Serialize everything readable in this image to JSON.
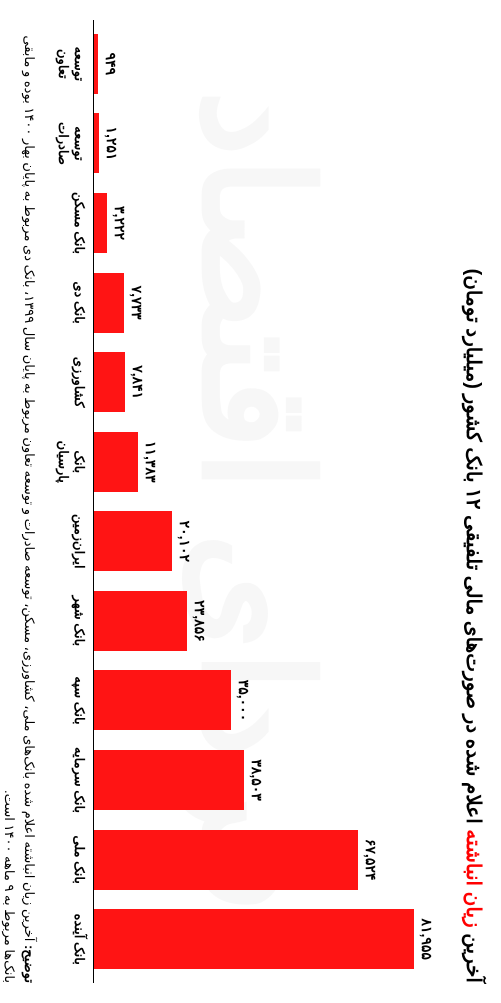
{
  "chart": {
    "type": "bar",
    "title_pre": "آخرین ",
    "title_accent": "زیان انباشته",
    "title_post": " اعلام شده در صورت‌های مالی تلفیقی ۱۲ بانک کشور (میلیارد تومان)",
    "title_fontsize": 20,
    "bar_color": "#ff1414",
    "background_color": "#ffffff",
    "max_value": 81955,
    "bars": [
      {
        "label": "بانک آینده",
        "value": 81955,
        "value_fa": "۸۱,۹۵۵"
      },
      {
        "label": "بانک ملی",
        "value": 67524,
        "value_fa": "۶۷,۵۲۴"
      },
      {
        "label": "بانک سرمایه",
        "value": 38503,
        "value_fa": "۳۸,۵۰۳"
      },
      {
        "label": "بانک سپه",
        "value": 35000,
        "value_fa": "۳۵,۰۰۰"
      },
      {
        "label": "بانک شهر",
        "value": 23856,
        "value_fa": "۲۳,۸۵۶"
      },
      {
        "label": "ایران‌زمین",
        "value": 20102,
        "value_fa": "۲۰,۱۰۲"
      },
      {
        "label": "بانک پارسیان",
        "value": 11383,
        "value_fa": "۱۱,۳۸۳"
      },
      {
        "label": "کشاورزی",
        "value": 7841,
        "value_fa": "۷,۸۴۱"
      },
      {
        "label": "بانک دی",
        "value": 7733,
        "value_fa": "۷,۷۳۳"
      },
      {
        "label": "بانک مسکن",
        "value": 3222,
        "value_fa": "۳,۲۲۲"
      },
      {
        "label": "توسعه صادرات",
        "value": 1251,
        "value_fa": "۱,۲۵۱"
      },
      {
        "label": "توسعه تعاون",
        "value": 949,
        "value_fa": "۹۴۹"
      }
    ],
    "note_bold": "توضیح: ",
    "note_text": "آخرین زیان انباشته اعلام شده بانک‌های ملی، کشاورزی، مسکن، توسعه صادرات و توسعه تعاون مربوط به پایان سال ۱۳۹۹، بانک دی مربوط به پایان بهار ۱۴۰۰ بوده و مابقی بانک‌ها مربوط به ۹ ماهه ۱۴۰۰ است.",
    "watermark": "فردای اقتصاد"
  }
}
